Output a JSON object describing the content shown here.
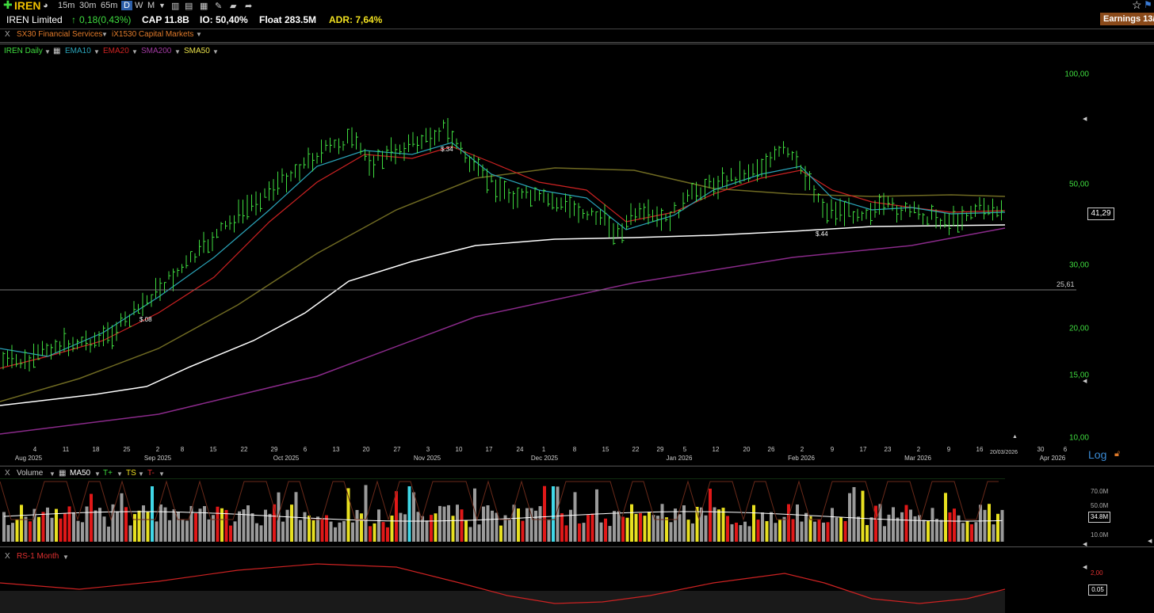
{
  "toolbar": {
    "ticker": "IREN",
    "timeframes": [
      "15m",
      "30m",
      "65m",
      "D",
      "W",
      "M"
    ],
    "active_timeframe": "D"
  },
  "header": {
    "company": "IREN Limited",
    "change": "0,18(0,43%)",
    "cap": "CAP 11.8B",
    "io": "IO: 50,40%",
    "float": "Float 283.5M",
    "adr": "ADR: 7,64%",
    "earnings": "Earnings 13/"
  },
  "sector": {
    "close": "X",
    "sector": "SX30 Financial Services",
    "industry": "iX1530 Capital Markets"
  },
  "indicators": {
    "close": "X",
    "symbol": "IREN Daily",
    "ema10": "EMA10",
    "ema20": "EMA20",
    "sma200": "SMA200",
    "sma50": "SMA50"
  },
  "colors": {
    "up": "#3fdc3f",
    "ema10": "#2aa3b8",
    "ema20": "#cc2222",
    "sma200": "#8a2a8a",
    "sma50": "#6f6a22",
    "sma50_legend": "#e8e04a",
    "white_ma": "#ffffff"
  },
  "price_axis": {
    "labels": [
      "100,00",
      "50,00",
      "30,00",
      "20,00",
      "15,00",
      "10,00"
    ],
    "current_price": "41,29",
    "hline_value": "25,61",
    "scale": "Log"
  },
  "earnings_markers": [
    "$.08",
    "$.34",
    "$.44"
  ],
  "x_axis": {
    "days": [
      "4",
      "11",
      "18",
      "25",
      "2",
      "8",
      "15",
      "22",
      "29",
      "6",
      "13",
      "20",
      "27",
      "3",
      "10",
      "17",
      "24",
      "1",
      "8",
      "15",
      "22",
      "29",
      "5",
      "12",
      "20",
      "26",
      "2",
      "9",
      "17",
      "23",
      "2",
      "9",
      "16",
      "30",
      "6"
    ],
    "months": [
      "Aug 2025",
      "Sep 2025",
      "Oct 2025",
      "Nov 2025",
      "Dec 2025",
      "Jan 2026",
      "Feb 2026",
      "Mar 2026",
      "Apr 2026"
    ],
    "date_stamp": "20/03/2026"
  },
  "volume_panel": {
    "close": "X",
    "title": "Volume",
    "ma": "MA50",
    "tplus": "T+",
    "ts": "TS",
    "tminus": "T-",
    "labels": [
      "70.0M",
      "50.0M",
      "10.0M"
    ],
    "current": "34.8M"
  },
  "rs_panel": {
    "close": "X",
    "title": "RS-1 Month",
    "label_top": "2,00",
    "current": "0.05"
  }
}
